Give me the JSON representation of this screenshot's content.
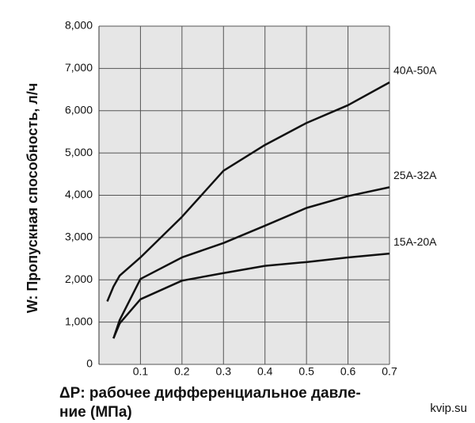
{
  "chart_data": {
    "type": "line",
    "ylabel": "W: Пропускная способность, л/ч",
    "xlabel": [
      "ΔP: рабочее дифференциальное давле-",
      "ние (МПа)"
    ],
    "watermark": "kvip.su",
    "x": [
      0.02,
      0.035,
      0.05,
      0.1,
      0.2,
      0.3,
      0.4,
      0.5,
      0.6,
      0.7
    ],
    "series": [
      {
        "name": "40A-50A",
        "color": "#111111",
        "values": [
          1490,
          1840,
          2100,
          2530,
          3490,
          4580,
          5190,
          5710,
          6130,
          6670
        ]
      },
      {
        "name": "25A-32A",
        "color": "#111111",
        "values": [
          null,
          615,
          1050,
          2020,
          2530,
          2870,
          3280,
          3700,
          3980,
          4190
        ]
      },
      {
        "name": "15A-20A",
        "color": "#111111",
        "values": [
          null,
          615,
          970,
          1540,
          1980,
          2160,
          2330,
          2420,
          2530,
          2620
        ]
      }
    ],
    "xlim": [
      0,
      0.7
    ],
    "xticks": [
      0.1,
      0.2,
      0.3,
      0.4,
      0.5,
      0.6,
      0.7
    ],
    "ylim": [
      0,
      8000
    ],
    "yticks": [
      0,
      {
        "value": 1000,
        "label": "1,000"
      },
      {
        "value": 2000,
        "label": "2,000"
      },
      {
        "value": 3000,
        "label": "3,000"
      },
      {
        "value": 4000,
        "label": "4,000"
      },
      {
        "value": 5000,
        "label": "5,000"
      },
      {
        "value": 6000,
        "label": "6,000"
      },
      {
        "value": 7000,
        "label": "7,000"
      },
      {
        "value": 8000,
        "label": "8,000"
      }
    ],
    "grid": true
  }
}
